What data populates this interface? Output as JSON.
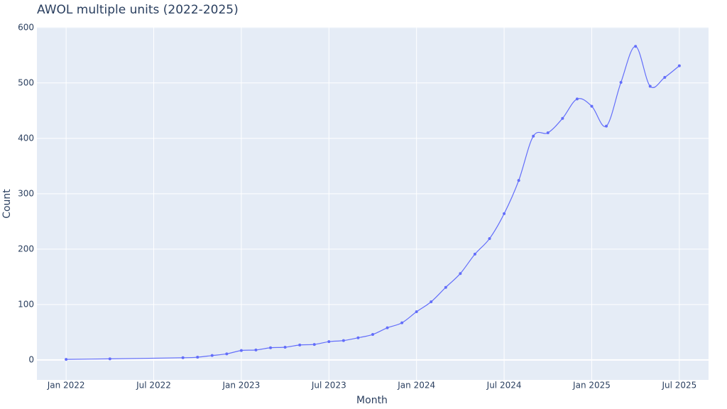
{
  "chart_data": {
    "type": "line",
    "title": "AWOL multiple units (2022-2025)",
    "x_label": "Month",
    "y_label": "Count",
    "x": [
      "2022-01",
      "2022-04",
      "2022-09",
      "2022-10",
      "2022-11",
      "2022-12",
      "2023-01",
      "2023-02",
      "2023-03",
      "2023-04",
      "2023-05",
      "2023-06",
      "2023-07",
      "2023-08",
      "2023-09",
      "2023-10",
      "2023-11",
      "2023-12",
      "2024-01",
      "2024-02",
      "2024-03",
      "2024-04",
      "2024-05",
      "2024-06",
      "2024-07",
      "2024-08",
      "2024-09",
      "2024-10",
      "2024-11",
      "2024-12",
      "2025-01",
      "2025-02",
      "2025-03",
      "2025-04",
      "2025-05",
      "2025-06",
      "2025-07"
    ],
    "series": [
      {
        "name": "Count",
        "color": "#636efa",
        "values": [
          1,
          2,
          4,
          5,
          8,
          11,
          17,
          18,
          22,
          23,
          27,
          28,
          33,
          35,
          40,
          46,
          58,
          67,
          87,
          105,
          131,
          156,
          191,
          219,
          264,
          324,
          404,
          410,
          436,
          471,
          458,
          422,
          501,
          566,
          494,
          510,
          531
        ]
      }
    ],
    "xlim": [
      "2021-11",
      "2025-09"
    ],
    "xticks": [
      {
        "value": "2022-01",
        "label": "Jan 2022"
      },
      {
        "value": "2022-07",
        "label": "Jul 2022"
      },
      {
        "value": "2023-01",
        "label": "Jan 2023"
      },
      {
        "value": "2023-07",
        "label": "Jul 2023"
      },
      {
        "value": "2024-01",
        "label": "Jan 2024"
      },
      {
        "value": "2024-07",
        "label": "Jul 2024"
      },
      {
        "value": "2025-01",
        "label": "Jan 2025"
      },
      {
        "value": "2025-07",
        "label": "Jul 2025"
      }
    ],
    "ylim": [
      -36,
      601
    ],
    "yticks": [
      0,
      100,
      200,
      300,
      400,
      500,
      600
    ],
    "grid": true,
    "smooth": true,
    "background": "#e5ecf6"
  }
}
